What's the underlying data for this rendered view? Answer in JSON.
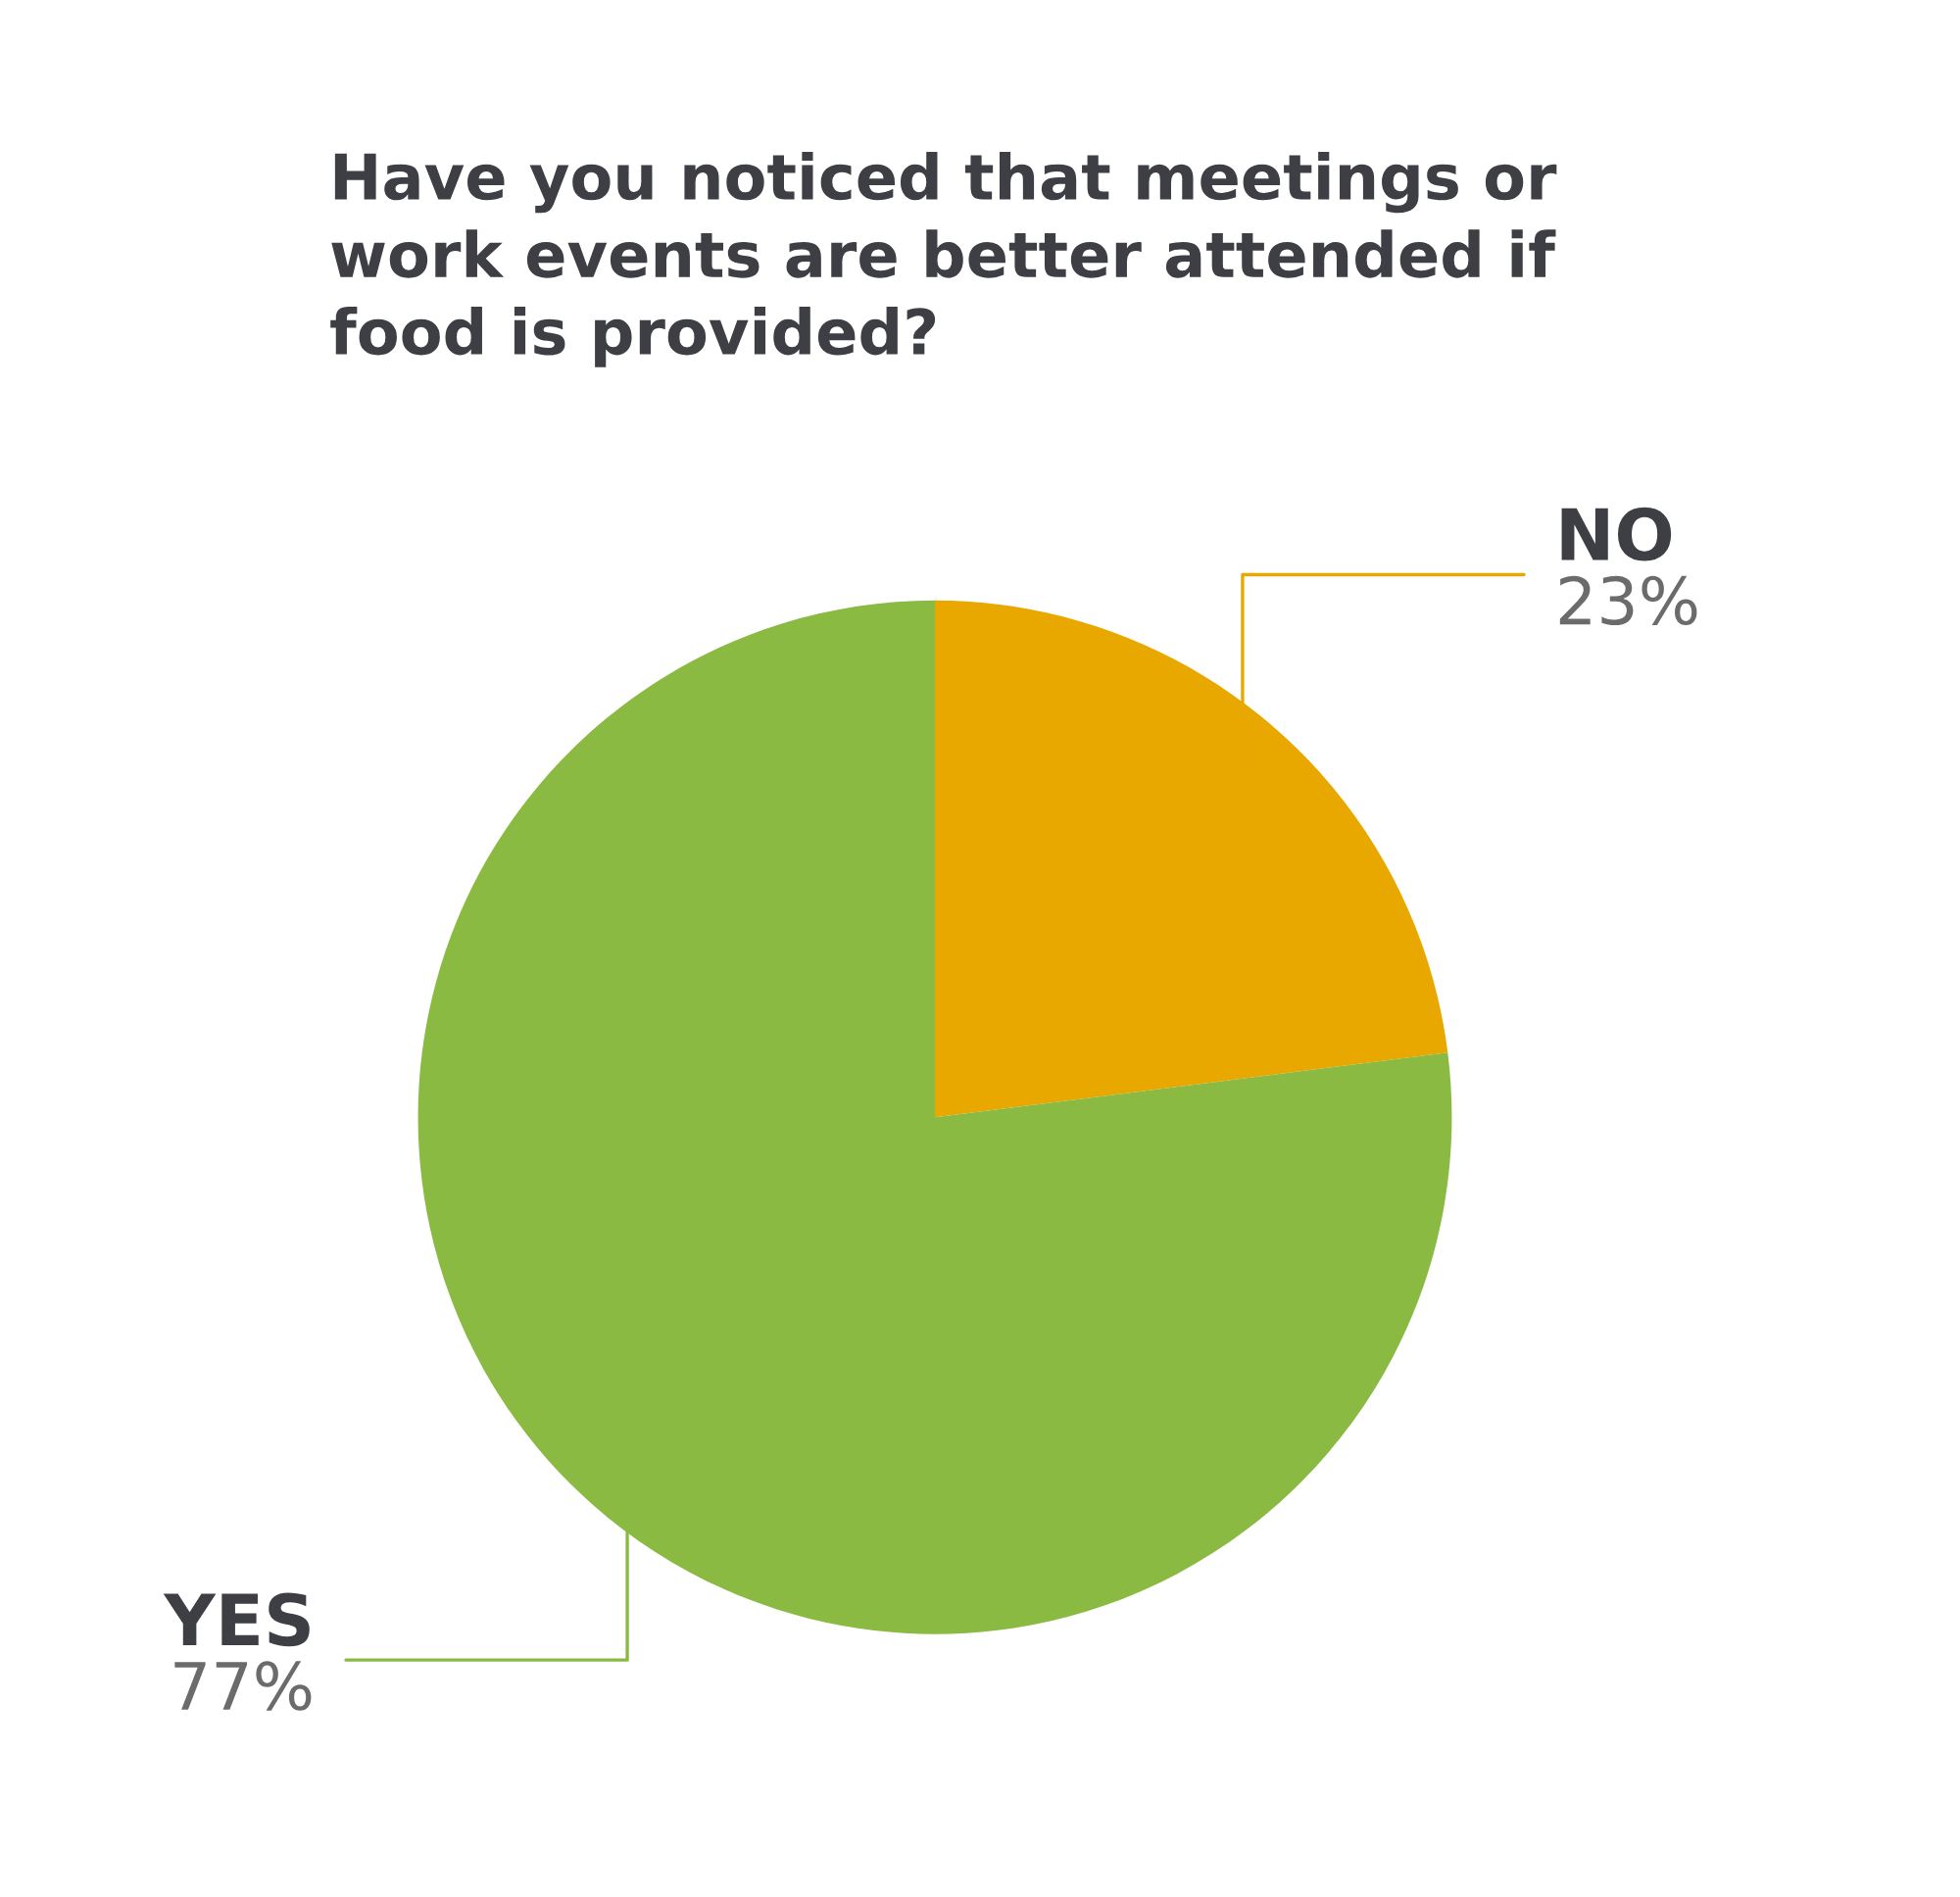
{
  "chart_data": {
    "type": "pie",
    "title": "Have you noticed that meetings or\nwork events are better attended if\nfood is provided?",
    "categories": [
      "NO",
      "YES"
    ],
    "values": [
      23,
      77
    ],
    "colors": [
      "#e8a800",
      "#8aba42"
    ],
    "value_labels": [
      "23%",
      "77%"
    ],
    "legend": false
  }
}
